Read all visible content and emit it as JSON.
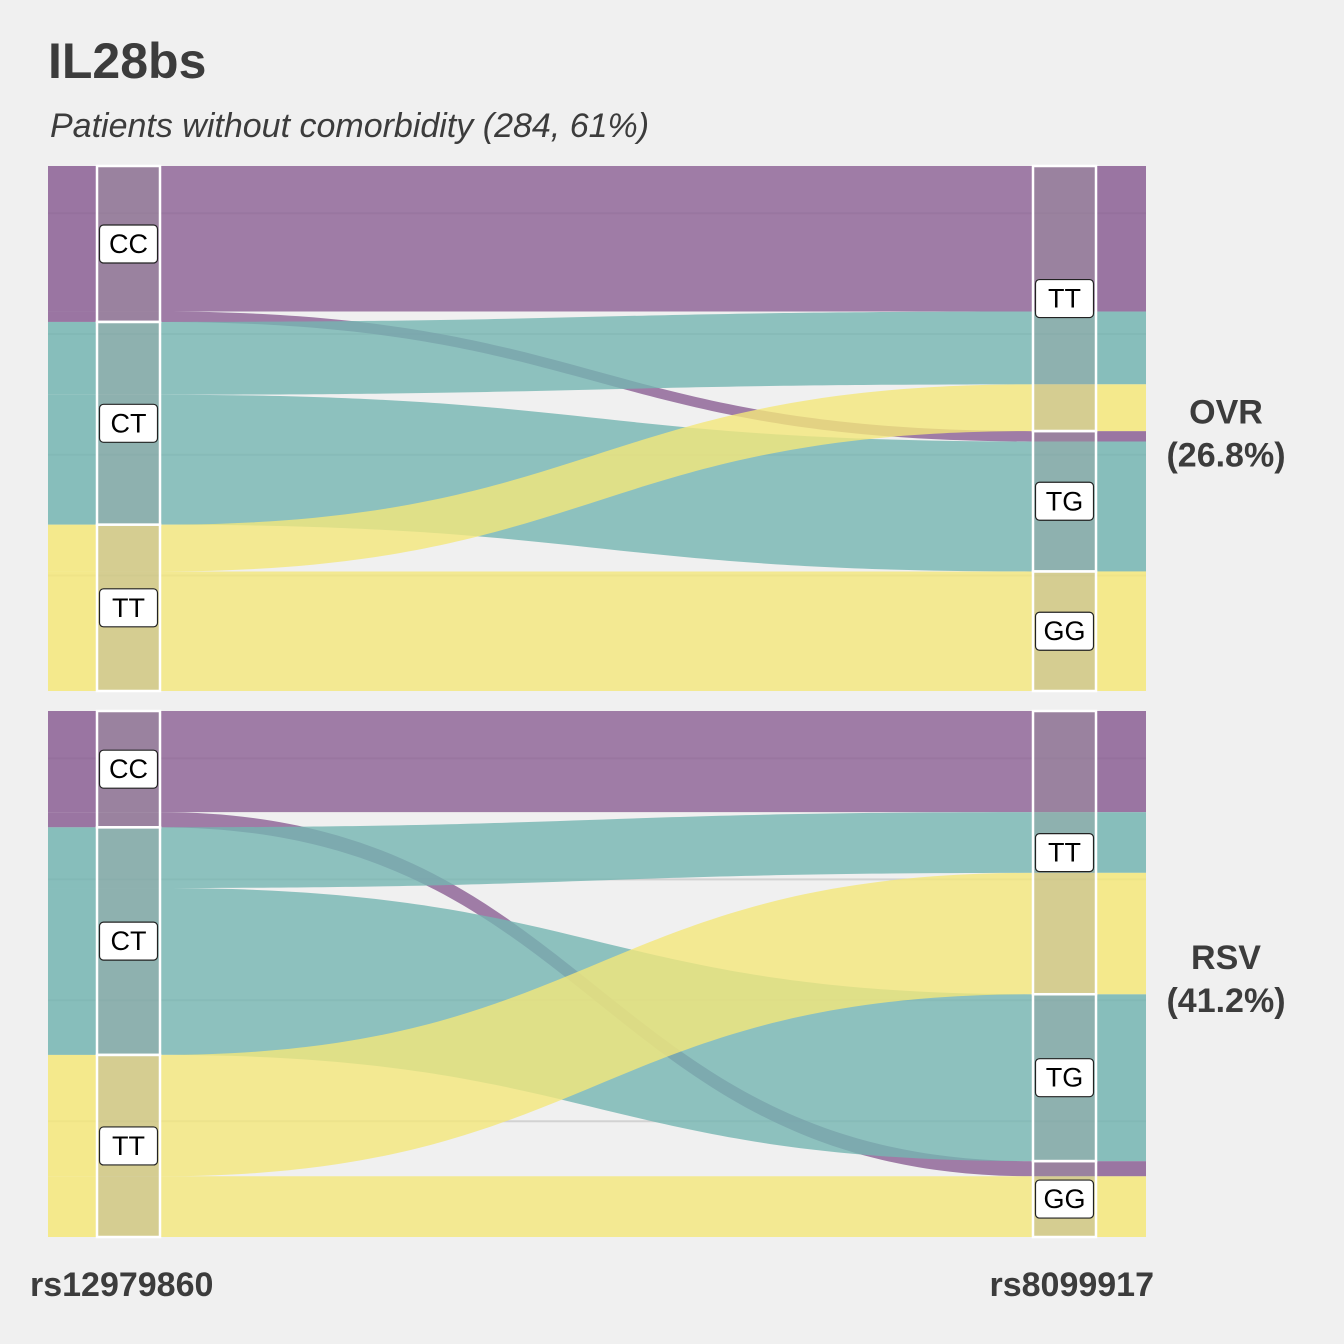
{
  "title": "IL28bs",
  "subtitle": "Patients without comorbidity (284, 61%)",
  "chart_data": {
    "type": "alluvial",
    "title": "IL28bs",
    "subtitle": "Patients without comorbidity (284, 61%)",
    "axes": [
      "rs12979860",
      "rs8099917"
    ],
    "colors": {
      "CC": "#8b5f94",
      "CT": "#74b5b1",
      "TT": "#f4e77a"
    },
    "left_categories": [
      "CC",
      "CT",
      "TT"
    ],
    "right_categories": [
      "TT",
      "TG",
      "GG"
    ],
    "panels": [
      {
        "label": "OVR",
        "pct": "(26.8%)",
        "flows": [
          {
            "from": "CC",
            "to": "TT",
            "value": 28
          },
          {
            "from": "CC",
            "to": "TG",
            "value": 2
          },
          {
            "from": "CT",
            "to": "TT",
            "value": 14
          },
          {
            "from": "CT",
            "to": "TG",
            "value": 25
          },
          {
            "from": "TT",
            "to": "TT",
            "value": 9
          },
          {
            "from": "TT",
            "to": "GG",
            "value": 23
          }
        ]
      },
      {
        "label": "RSV",
        "pct": "(41.2%)",
        "flows": [
          {
            "from": "CC",
            "to": "TT",
            "value": 20
          },
          {
            "from": "CC",
            "to": "GG",
            "value": 3
          },
          {
            "from": "CT",
            "to": "TT",
            "value": 12
          },
          {
            "from": "CT",
            "to": "TG",
            "value": 33
          },
          {
            "from": "TT",
            "to": "TT",
            "value": 24
          },
          {
            "from": "TT",
            "to": "GG",
            "value": 12
          }
        ]
      }
    ]
  }
}
